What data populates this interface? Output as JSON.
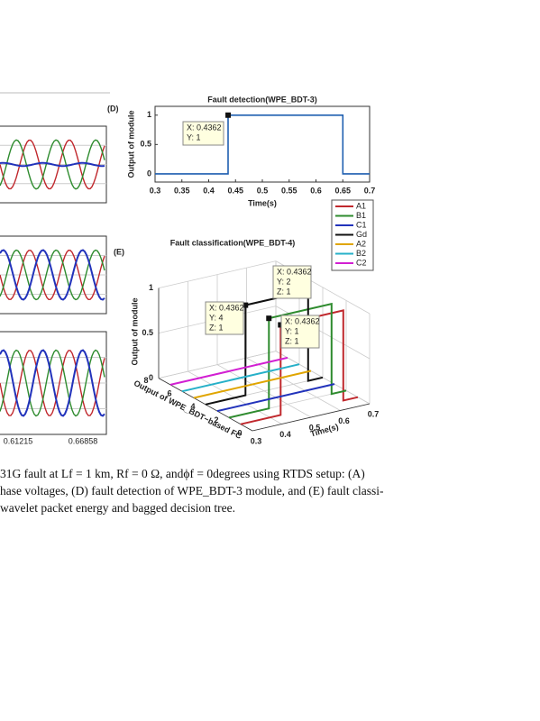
{
  "left_panels": {
    "xtick_labels": [
      "0.61215",
      "0.66858"
    ]
  },
  "panel_d": {
    "type": "line",
    "label": "(D)",
    "title": "Fault detection(WPE_BDT-3)",
    "xlabel": "Time(s)",
    "ylabel": "Output of module",
    "x": [
      0.3,
      0.4362,
      0.4362,
      0.65,
      0.65,
      0.7
    ],
    "values": [
      0,
      0,
      1,
      1,
      0,
      0
    ],
    "color": "#1f5fb0",
    "xlim": [
      0.3,
      0.7
    ],
    "ylim": [
      -0.14,
      1.15
    ],
    "xticks": [
      0.3,
      0.35,
      0.4,
      0.45,
      0.5,
      0.55,
      0.6,
      0.65,
      0.7
    ],
    "yticks": [
      0,
      0.5,
      1
    ],
    "datatip": [
      "X: 0.4362",
      "Y: 1"
    ]
  },
  "panel_e": {
    "type": "line3d",
    "label": "(E)",
    "title": "Fault classification(WPE_BDT-4)",
    "xlabel": "Time(s)",
    "ylabel": "Output of WPE_BDT−based FC",
    "zlabel": "Output of module",
    "xticks": [
      0.3,
      0.4,
      0.5,
      0.6,
      0.7
    ],
    "yticks": [
      0,
      2,
      4,
      6,
      8
    ],
    "zticks": [
      0,
      0.5,
      1
    ],
    "series": [
      {
        "name": "A1",
        "color": "#c0282d",
        "fc": 1,
        "x": [
          0.3,
          0.4362,
          0.4362,
          0.65,
          0.65,
          0.7
        ],
        "values": [
          0,
          0,
          1,
          1,
          0,
          0
        ]
      },
      {
        "name": "B1",
        "color": "#2e8b2e",
        "fc": 2,
        "x": [
          0.3,
          0.4362,
          0.4362,
          0.65,
          0.65,
          0.7
        ],
        "values": [
          0,
          0,
          1,
          1,
          0,
          0
        ]
      },
      {
        "name": "C1",
        "color": "#2233bb",
        "fc": 3,
        "x": [
          0.3,
          0.7
        ],
        "values": [
          0,
          0
        ]
      },
      {
        "name": "Gd",
        "color": "#111111",
        "fc": 4,
        "x": [
          0.3,
          0.4362,
          0.4362,
          0.65,
          0.65,
          0.7
        ],
        "values": [
          0,
          0,
          1,
          1,
          0,
          0
        ]
      },
      {
        "name": "A2",
        "color": "#e0a500",
        "fc": 5,
        "x": [
          0.3,
          0.7
        ],
        "values": [
          0,
          0
        ]
      },
      {
        "name": "B2",
        "color": "#26b0c8",
        "fc": 6,
        "x": [
          0.3,
          0.7
        ],
        "values": [
          0,
          0
        ]
      },
      {
        "name": "C2",
        "color": "#d21fd2",
        "fc": 7,
        "x": [
          0.3,
          0.7
        ],
        "values": [
          0,
          0
        ]
      }
    ],
    "datatips": [
      [
        "X: 0.4362",
        "Y: 4",
        "Z: 1"
      ],
      [
        "X: 0.4362",
        "Y: 2",
        "Z: 1"
      ],
      [
        "X: 0.4362",
        "Y: 1",
        "Z: 1"
      ]
    ]
  },
  "caption": [
    "31G fault at Lf = 1 km, Rf = 0 Ω, andϕf = 0degrees using RTDS setup: (A)",
    "hase voltages, (D) fault detection of WPE_BDT-3 module, and (E) fault classi-",
    "wavelet packet energy and bagged decision tree."
  ]
}
